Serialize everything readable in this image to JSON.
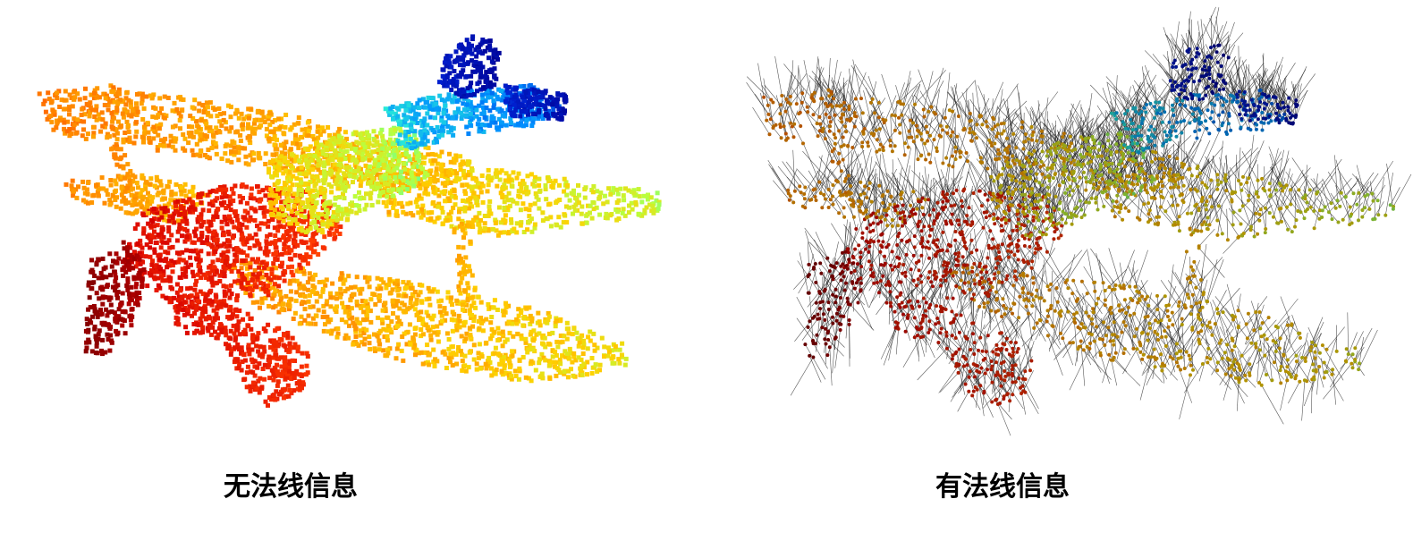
{
  "figure": {
    "left_caption": "无法线信息",
    "right_caption": "有法线信息"
  },
  "colors": {
    "background": "#ffffff",
    "normal_line": "#222222",
    "colormap": [
      "#7f0000",
      "#d50000",
      "#ff3a00",
      "#ff8a00",
      "#ffd000",
      "#b8ff40",
      "#30ffd0",
      "#0090ff",
      "#0020d0",
      "#00008f"
    ]
  }
}
